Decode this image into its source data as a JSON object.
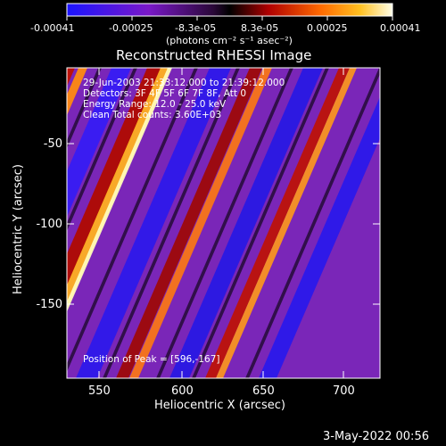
{
  "colorbar": {
    "ticks": [
      "-0.00041",
      "-0.00025",
      "-8.3e-05",
      "8.3e-05",
      "0.00025",
      "0.00041"
    ],
    "units": "(photons cm⁻² s⁻¹ asec⁻²)"
  },
  "plot": {
    "title": "Reconstructed RHESSI Image",
    "xlabel": "Heliocentric X (arcsec)",
    "ylabel": "Heliocentric Y (arcsec)",
    "x_ticks": [
      "550",
      "600",
      "650",
      "700"
    ],
    "y_ticks": [
      "-50",
      "-100",
      "-150"
    ]
  },
  "annotations": {
    "line1": "29-Jun-2003 21:33:12.000 to 21:39:12.000",
    "line2": "Detectors: 3F 4F 5F 6F 7F 8F, Att 0",
    "line3": "Energy Range: 12.0 - 25.0 keV",
    "line4": "Clean     Total counts: 3.60E+03",
    "peak": "Position of Peak = [596,-167]"
  },
  "footer": {
    "timestamp": "3-May-2022 00:56"
  },
  "colors": {
    "background": "#000000",
    "foreground": "#ffffff",
    "colormap_low": "#0000ff",
    "colormap_mid": "#000000",
    "colormap_high": "#ffffff"
  }
}
